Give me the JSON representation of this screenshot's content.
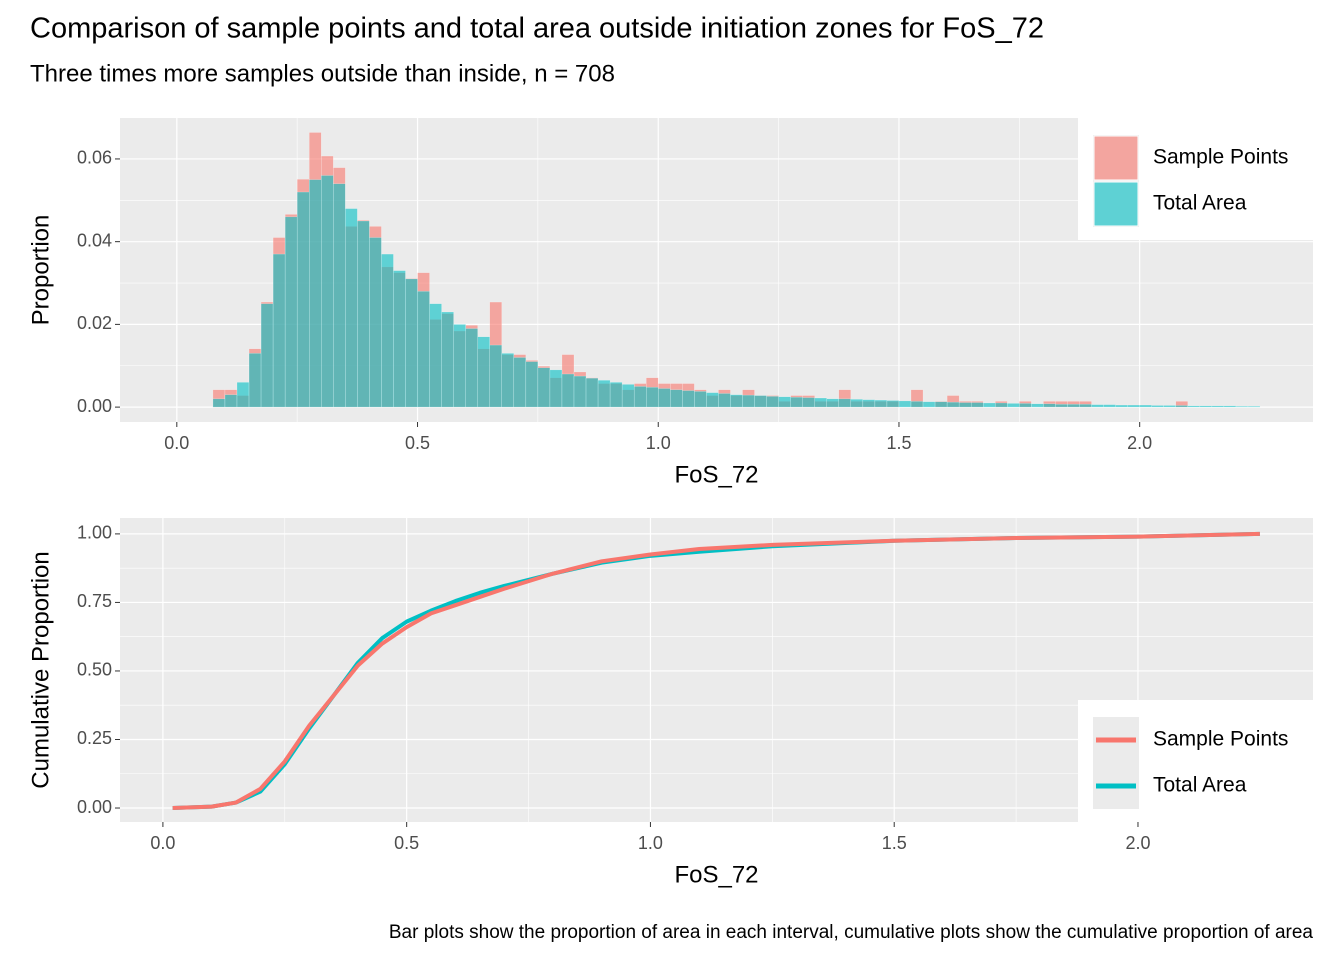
{
  "chart_data": [
    {
      "type": "histogram",
      "title": "Comparison of sample points and total area outside initiation zones for FoS_72",
      "subtitle": "Three times more samples outside than inside, n = 708",
      "x_label": "FoS_72",
      "y_label": "Proportion",
      "bins": [
        0.075,
        0.1,
        0.125,
        0.15,
        0.175,
        0.2,
        0.225,
        0.25,
        0.275,
        0.3,
        0.325,
        0.35,
        0.375,
        0.4,
        0.425,
        0.45,
        0.475,
        0.5,
        0.525,
        0.55,
        0.575,
        0.6,
        0.625,
        0.65,
        0.675,
        0.7,
        0.725,
        0.75,
        0.775,
        0.8,
        0.825,
        0.85,
        0.875,
        0.9,
        0.925,
        0.95,
        0.975,
        1.0,
        1.025,
        1.05,
        1.075,
        1.1,
        1.125,
        1.15,
        1.175,
        1.2,
        1.225,
        1.25,
        1.275,
        1.3,
        1.325,
        1.35,
        1.375,
        1.4,
        1.425,
        1.45,
        1.475,
        1.5,
        1.525,
        1.55,
        1.575,
        1.6,
        1.625,
        1.65,
        1.675,
        1.7,
        1.725,
        1.75,
        1.775,
        1.8,
        1.825,
        1.85,
        1.875,
        1.9,
        1.925,
        1.95,
        1.975,
        2.0,
        2.025,
        2.05,
        2.075,
        2.1,
        2.125,
        2.15,
        2.175,
        2.2,
        2.225,
        2.25
      ],
      "series": [
        {
          "name": "Sample Points",
          "color": "#F8766D",
          "values": [
            0.0042,
            0.0042,
            0.0028,
            0.0141,
            0.0254,
            0.041,
            0.0466,
            0.0551,
            0.0664,
            0.0607,
            0.0579,
            0.0437,
            0.0452,
            0.0437,
            0.0339,
            0.0325,
            0.0311,
            0.0325,
            0.0212,
            0.0226,
            0.0184,
            0.0198,
            0.0141,
            0.0254,
            0.0127,
            0.0127,
            0.0113,
            0.0099,
            0.0071,
            0.0127,
            0.0085,
            0.0071,
            0.0057,
            0.0057,
            0.0042,
            0.0057,
            0.0071,
            0.0057,
            0.0057,
            0.0057,
            0.0042,
            0.0028,
            0.0042,
            0.0028,
            0.0042,
            0.0028,
            0.0028,
            0.0014,
            0.0028,
            0.0028,
            0.0014,
            0.0014,
            0.0042,
            0.0014,
            0.0014,
            0.0014,
            0.0014,
            0,
            0.0042,
            0,
            0.0014,
            0.0028,
            0.0014,
            0.0014,
            0,
            0.0014,
            0,
            0.0014,
            0,
            0.0014,
            0.0014,
            0.0014,
            0.0014,
            0,
            0,
            0,
            0,
            0,
            0,
            0,
            0.0014,
            0,
            0,
            0,
            0,
            0,
            0
          ]
        },
        {
          "name": "Total Area",
          "color": "#00BFC4",
          "values": [
            0.002,
            0.003,
            0.006,
            0.013,
            0.025,
            0.037,
            0.046,
            0.052,
            0.055,
            0.056,
            0.054,
            0.048,
            0.045,
            0.041,
            0.037,
            0.033,
            0.031,
            0.028,
            0.025,
            0.023,
            0.02,
            0.019,
            0.017,
            0.015,
            0.013,
            0.012,
            0.011,
            0.0095,
            0.009,
            0.008,
            0.0075,
            0.007,
            0.0065,
            0.006,
            0.0055,
            0.005,
            0.0048,
            0.0045,
            0.0042,
            0.004,
            0.0038,
            0.0035,
            0.0033,
            0.003,
            0.0029,
            0.0028,
            0.0026,
            0.0025,
            0.0024,
            0.0023,
            0.0022,
            0.002,
            0.002,
            0.0019,
            0.0018,
            0.0017,
            0.0016,
            0.0015,
            0.0014,
            0.0013,
            0.0013,
            0.0012,
            0.0011,
            0.0011,
            0.001,
            0.001,
            0.0009,
            0.0009,
            0.0008,
            0.0008,
            0.0007,
            0.0007,
            0.0007,
            0.0006,
            0.0006,
            0.0005,
            0.0005,
            0.0005,
            0.0004,
            0.0004,
            0.0004,
            0.0003,
            0.0003,
            0.0003,
            0.0003,
            0.0002,
            0.0002
          ]
        }
      ],
      "xlim": [
        -0.118,
        2.36
      ],
      "ylim": [
        -0.0036,
        0.0699
      ],
      "xticks": [
        {
          "value": 0,
          "label": "0.0"
        },
        {
          "value": 0.5,
          "label": "0.5"
        },
        {
          "value": 1,
          "label": "1.0"
        },
        {
          "value": 1.5,
          "label": "1.5"
        },
        {
          "value": 2,
          "label": "2.0"
        }
      ],
      "yticks": [
        {
          "value": 0,
          "label": "0.00"
        },
        {
          "value": 0.02,
          "label": "0.02"
        },
        {
          "value": 0.04,
          "label": "0.04"
        },
        {
          "value": 0.06,
          "label": "0.06"
        }
      ],
      "grid": true,
      "legend": "top-right"
    },
    {
      "type": "line",
      "x_label": "FoS_72",
      "y_label": "Cumulative Proportion",
      "caption": "Bar plots show the proportion of area in each interval, cumulative plots show the cumulative proportion of area",
      "x": [
        0.02,
        0.1,
        0.15,
        0.2,
        0.25,
        0.3,
        0.35,
        0.4,
        0.45,
        0.5,
        0.55,
        0.6,
        0.65,
        0.7,
        0.8,
        0.9,
        1.0,
        1.1,
        1.25,
        1.5,
        1.75,
        2.0,
        2.25
      ],
      "series": [
        {
          "name": "Sample Points",
          "color": "#F8766D",
          "values": [
            0,
            0.005,
            0.02,
            0.07,
            0.17,
            0.3,
            0.41,
            0.52,
            0.6,
            0.66,
            0.71,
            0.74,
            0.77,
            0.8,
            0.855,
            0.9,
            0.925,
            0.945,
            0.96,
            0.975,
            0.985,
            0.99,
            1.0
          ]
        },
        {
          "name": "Total Area",
          "color": "#00BFC4",
          "values": [
            0,
            0.005,
            0.02,
            0.06,
            0.16,
            0.29,
            0.41,
            0.53,
            0.62,
            0.68,
            0.72,
            0.755,
            0.785,
            0.81,
            0.855,
            0.895,
            0.92,
            0.935,
            0.955,
            0.975,
            0.985,
            0.99,
            1.0
          ]
        }
      ],
      "xlim": [
        -0.088,
        2.359
      ],
      "ylim": [
        -0.051,
        1.058
      ],
      "xticks": [
        {
          "value": 0,
          "label": "0.0"
        },
        {
          "value": 0.5,
          "label": "0.5"
        },
        {
          "value": 1,
          "label": "1.0"
        },
        {
          "value": 1.5,
          "label": "1.5"
        },
        {
          "value": 2,
          "label": "2.0"
        }
      ],
      "yticks": [
        {
          "value": 0,
          "label": "0.00"
        },
        {
          "value": 0.25,
          "label": "0.25"
        },
        {
          "value": 0.5,
          "label": "0.50"
        },
        {
          "value": 0.75,
          "label": "0.75"
        },
        {
          "value": 1,
          "label": "1.00"
        }
      ],
      "grid": true,
      "legend": "bottom-right"
    }
  ]
}
